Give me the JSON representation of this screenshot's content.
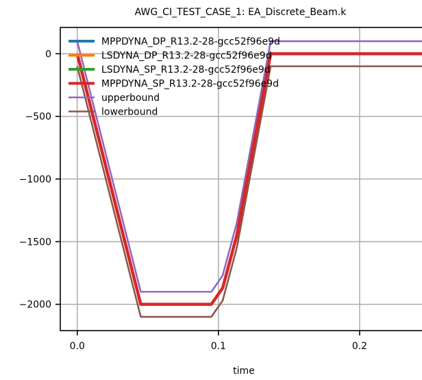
{
  "chart_data": {
    "type": "line",
    "title": "AWG_CI_TEST_CASE_1: EA_Discrete_Beam.k",
    "xlabel": "time",
    "ylabel": "",
    "xlim": [
      -0.012,
      0.25
    ],
    "ylim": [
      -2210,
      210
    ],
    "xticks": [
      0.0,
      0.1,
      0.2
    ],
    "xtick_labels": [
      "0.0",
      "0.1",
      "0.2"
    ],
    "yticks": [
      0,
      -500,
      -1000,
      -1500,
      -2000
    ],
    "ytick_labels": [
      "0",
      "−500",
      "−1000",
      "−1500",
      "−2000"
    ],
    "grid": true,
    "legend_position": "top-left",
    "series": [
      {
        "name": "MPPDYNA_DP_R13.2-28-gcc52f96e9d",
        "color": "#1f77b4",
        "x": [
          0.0,
          0.045,
          0.095,
          0.103,
          0.113,
          0.137,
          0.25
        ],
        "y": [
          0,
          -2000,
          -2000,
          -1870,
          -1450,
          0,
          0
        ]
      },
      {
        "name": "LSDYNA_DP_R13.2-28-gcc52f96e9d",
        "color": "#ff7f0e",
        "x": [
          0.0,
          0.045,
          0.095,
          0.103,
          0.113,
          0.137,
          0.25
        ],
        "y": [
          0,
          -2000,
          -2000,
          -1870,
          -1450,
          0,
          0
        ]
      },
      {
        "name": "LSDYNA_SP_R13.2-28-gcc52f96e9d",
        "color": "#2ca02c",
        "x": [
          0.0,
          0.045,
          0.095,
          0.103,
          0.113,
          0.137,
          0.25
        ],
        "y": [
          0,
          -2000,
          -2000,
          -1870,
          -1450,
          0,
          0
        ]
      },
      {
        "name": "MPPDYNA_SP_R13.2-28-gcc52f96e9d",
        "color": "#d62728",
        "x": [
          0.0,
          0.045,
          0.095,
          0.103,
          0.113,
          0.137,
          0.25
        ],
        "y": [
          0,
          -2000,
          -2000,
          -1870,
          -1450,
          0,
          0
        ]
      },
      {
        "name": "upperbound",
        "color": "#9467bd",
        "x": [
          0.0,
          0.045,
          0.095,
          0.103,
          0.113,
          0.137,
          0.245
        ],
        "y": [
          100,
          -1900,
          -1900,
          -1770,
          -1350,
          100,
          100
        ]
      },
      {
        "name": "lowerbound",
        "color": "#8c564b",
        "x": [
          0.0,
          0.045,
          0.095,
          0.103,
          0.113,
          0.137,
          0.245
        ],
        "y": [
          -100,
          -2100,
          -2100,
          -1970,
          -1550,
          -100,
          -100
        ]
      }
    ]
  }
}
